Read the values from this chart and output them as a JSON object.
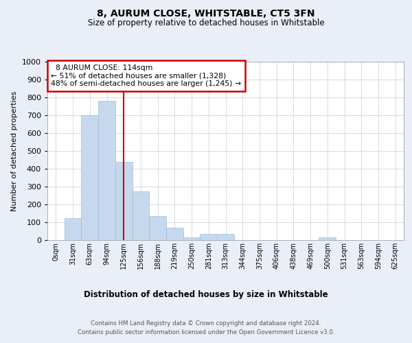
{
  "title": "8, AURUM CLOSE, WHITSTABLE, CT5 3FN",
  "subtitle": "Size of property relative to detached houses in Whitstable",
  "xlabel": "Distribution of detached houses by size in Whitstable",
  "ylabel": "Number of detached properties",
  "footer_line1": "Contains HM Land Registry data © Crown copyright and database right 2024.",
  "footer_line2": "Contains public sector information licensed under the Open Government Licence v3.0.",
  "annotation_line1": "  8 AURUM CLOSE: 114sqm  ",
  "annotation_line2": "← 51% of detached houses are smaller (1,328)",
  "annotation_line3": "48% of semi-detached houses are larger (1,245) →",
  "bar_color": "#c5d8ed",
  "bar_edge_color": "#a0bcd8",
  "vline_color": "#cc0000",
  "annotation_box_color": "#cc0000",
  "background_color": "#eaeff7",
  "plot_bg_color": "#ffffff",
  "ylim": [
    0,
    1000
  ],
  "yticks": [
    0,
    100,
    200,
    300,
    400,
    500,
    600,
    700,
    800,
    900,
    1000
  ],
  "bin_labels": [
    "0sqm",
    "31sqm",
    "63sqm",
    "94sqm",
    "125sqm",
    "156sqm",
    "188sqm",
    "219sqm",
    "250sqm",
    "281sqm",
    "313sqm",
    "344sqm",
    "375sqm",
    "406sqm",
    "438sqm",
    "469sqm",
    "500sqm",
    "531sqm",
    "563sqm",
    "594sqm",
    "625sqm"
  ],
  "values": [
    0,
    125,
    700,
    780,
    440,
    275,
    135,
    70,
    15,
    35,
    35,
    0,
    0,
    0,
    0,
    0,
    15,
    0,
    0,
    0,
    0
  ],
  "vline_bin_index": 4,
  "property_sqm": 114
}
